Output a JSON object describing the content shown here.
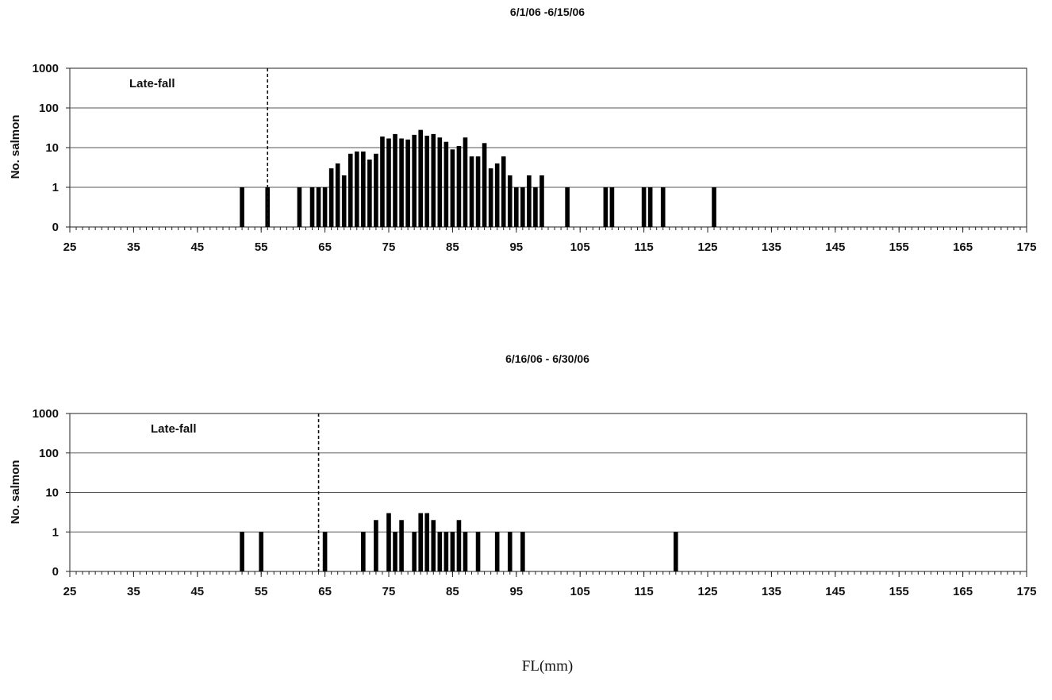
{
  "chart_data": [
    {
      "type": "bar",
      "title": "6/1/06 -6/15/06",
      "xlabel": "",
      "ylabel": "No. salmon",
      "yscale": "log",
      "yticks": [
        "0",
        "1",
        "10",
        "100",
        "1000"
      ],
      "ylim": [
        0,
        1000
      ],
      "xlim": [
        25,
        175
      ],
      "xticks": [
        25,
        35,
        45,
        55,
        65,
        75,
        85,
        95,
        105,
        115,
        125,
        135,
        145,
        155,
        165,
        175
      ],
      "grid": true,
      "annotation": {
        "text": "Late-fall",
        "cutoff_x": 56
      },
      "points": [
        {
          "x": 52,
          "y": 1
        },
        {
          "x": 56,
          "y": 1
        },
        {
          "x": 61,
          "y": 1
        },
        {
          "x": 63,
          "y": 1
        },
        {
          "x": 64,
          "y": 1
        },
        {
          "x": 65,
          "y": 1
        },
        {
          "x": 66,
          "y": 3
        },
        {
          "x": 67,
          "y": 4
        },
        {
          "x": 68,
          "y": 2
        },
        {
          "x": 69,
          "y": 7
        },
        {
          "x": 70,
          "y": 8
        },
        {
          "x": 71,
          "y": 8
        },
        {
          "x": 72,
          "y": 5
        },
        {
          "x": 73,
          "y": 7
        },
        {
          "x": 74,
          "y": 19
        },
        {
          "x": 75,
          "y": 17
        },
        {
          "x": 76,
          "y": 22
        },
        {
          "x": 77,
          "y": 17
        },
        {
          "x": 78,
          "y": 16
        },
        {
          "x": 79,
          "y": 21
        },
        {
          "x": 80,
          "y": 28
        },
        {
          "x": 81,
          "y": 20
        },
        {
          "x": 82,
          "y": 22
        },
        {
          "x": 83,
          "y": 18
        },
        {
          "x": 84,
          "y": 14
        },
        {
          "x": 85,
          "y": 9
        },
        {
          "x": 86,
          "y": 11
        },
        {
          "x": 87,
          "y": 18
        },
        {
          "x": 88,
          "y": 6
        },
        {
          "x": 89,
          "y": 6
        },
        {
          "x": 90,
          "y": 13
        },
        {
          "x": 91,
          "y": 3
        },
        {
          "x": 92,
          "y": 4
        },
        {
          "x": 93,
          "y": 6
        },
        {
          "x": 94,
          "y": 2
        },
        {
          "x": 95,
          "y": 1
        },
        {
          "x": 96,
          "y": 1
        },
        {
          "x": 97,
          "y": 2
        },
        {
          "x": 98,
          "y": 1
        },
        {
          "x": 99,
          "y": 2
        },
        {
          "x": 103,
          "y": 1
        },
        {
          "x": 109,
          "y": 1
        },
        {
          "x": 110,
          "y": 1
        },
        {
          "x": 115,
          "y": 1
        },
        {
          "x": 116,
          "y": 1
        },
        {
          "x": 118,
          "y": 1
        },
        {
          "x": 126,
          "y": 1
        }
      ]
    },
    {
      "type": "bar",
      "title": "6/16/06 - 6/30/06",
      "xlabel": "",
      "ylabel": "No. salmon",
      "yscale": "log",
      "yticks": [
        "0",
        "1",
        "10",
        "100",
        "1000"
      ],
      "ylim": [
        0,
        1000
      ],
      "xlim": [
        25,
        175
      ],
      "xticks": [
        25,
        35,
        45,
        55,
        65,
        75,
        85,
        95,
        105,
        115,
        125,
        135,
        145,
        155,
        165,
        175
      ],
      "grid": true,
      "annotation": {
        "text": "Late-fall",
        "cutoff_x": 64
      },
      "points": [
        {
          "x": 52,
          "y": 1
        },
        {
          "x": 55,
          "y": 1
        },
        {
          "x": 65,
          "y": 1
        },
        {
          "x": 71,
          "y": 1
        },
        {
          "x": 73,
          "y": 2
        },
        {
          "x": 75,
          "y": 3
        },
        {
          "x": 76,
          "y": 1
        },
        {
          "x": 77,
          "y": 2
        },
        {
          "x": 79,
          "y": 1
        },
        {
          "x": 80,
          "y": 3
        },
        {
          "x": 81,
          "y": 3
        },
        {
          "x": 82,
          "y": 2
        },
        {
          "x": 83,
          "y": 1
        },
        {
          "x": 84,
          "y": 1
        },
        {
          "x": 85,
          "y": 1
        },
        {
          "x": 86,
          "y": 2
        },
        {
          "x": 87,
          "y": 1
        },
        {
          "x": 89,
          "y": 1
        },
        {
          "x": 92,
          "y": 1
        },
        {
          "x": 94,
          "y": 1
        },
        {
          "x": 96,
          "y": 1
        },
        {
          "x": 120,
          "y": 1
        }
      ]
    }
  ],
  "shared_xlabel": "FL(mm)"
}
